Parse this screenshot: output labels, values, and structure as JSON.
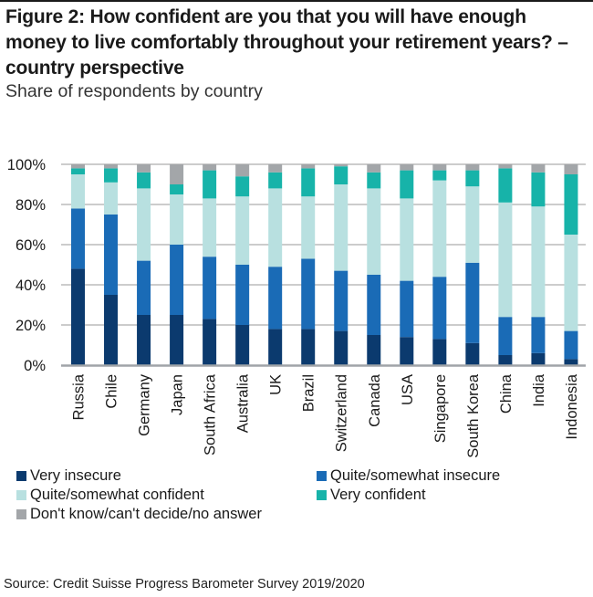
{
  "chart_data": {
    "type": "bar",
    "stacked": true,
    "title": "Figure 2: How confident are you that you will have enough money to live comfortably throughout your retirement years? – country perspective",
    "subtitle": "Share of respondents by country",
    "xlabel": "",
    "ylabel": "",
    "ylim": [
      0,
      100
    ],
    "yticks": [
      0,
      20,
      40,
      60,
      80,
      100
    ],
    "ytick_labels": [
      "0%",
      "20%",
      "40%",
      "60%",
      "80%",
      "100%"
    ],
    "grid": true,
    "legend_position": "bottom",
    "categories": [
      "Russia",
      "Chile",
      "Germany",
      "Japan",
      "South Africa",
      "Australia",
      "UK",
      "Brazil",
      "Switzerland",
      "Canada",
      "USA",
      "Singapore",
      "South Korea",
      "China",
      "India",
      "Indonesia"
    ],
    "series": [
      {
        "name": "Very insecure",
        "color": "#0b3a6e",
        "values": [
          48,
          35,
          25,
          25,
          23,
          20,
          18,
          18,
          17,
          15,
          14,
          13,
          11,
          5,
          6,
          3
        ]
      },
      {
        "name": "Quite/somewhat insecure",
        "color": "#1a6bb6",
        "values": [
          30,
          40,
          27,
          35,
          31,
          30,
          31,
          35,
          30,
          30,
          28,
          31,
          40,
          19,
          18,
          14
        ]
      },
      {
        "name": "Quite/somewhat confident",
        "color": "#b8e0e0",
        "values": [
          17,
          16,
          36,
          25,
          29,
          34,
          39,
          31,
          43,
          43,
          41,
          48,
          38,
          57,
          55,
          48
        ]
      },
      {
        "name": "Very confident",
        "color": "#17b3a9",
        "values": [
          3,
          7,
          8,
          5,
          14,
          10,
          8,
          14,
          9,
          8,
          14,
          5,
          8,
          17,
          17,
          30
        ]
      },
      {
        "name": "Don't know/can't decide/no answer",
        "color": "#a3a6a9",
        "values": [
          2,
          2,
          4,
          10,
          3,
          6,
          4,
          2,
          1,
          4,
          3,
          3,
          3,
          2,
          4,
          5
        ]
      }
    ],
    "source": "Source: Credit Suisse Progress Barometer Survey 2019/2020"
  },
  "colors": {
    "gridline": "#9a9a9a",
    "axis": "#a0a4a8",
    "text": "#1a1a1a"
  }
}
